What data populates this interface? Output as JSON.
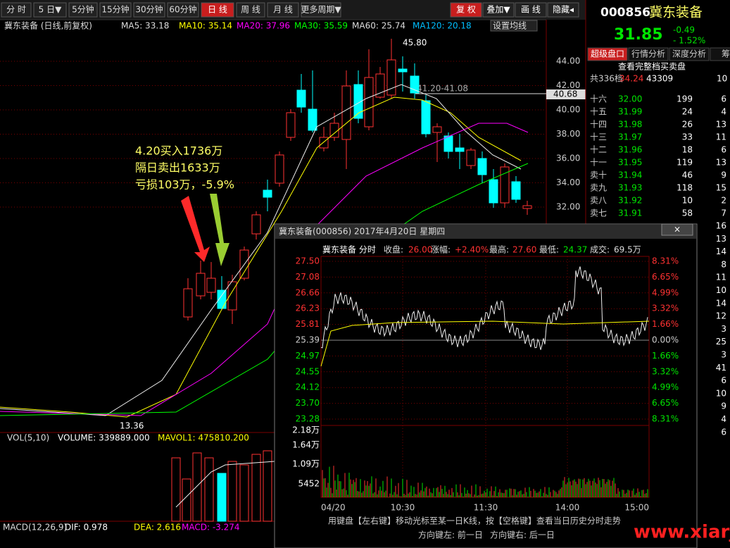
{
  "toolbar": {
    "left": [
      "分 时",
      "5 日▼",
      "5分钟",
      "15分钟",
      "30分钟",
      "60分钟",
      "日 线",
      "周 线",
      "月 线",
      "更多周期▼"
    ],
    "right": [
      "复 权",
      "叠加▼",
      "画 线",
      "隐藏◂"
    ]
  },
  "quote": {
    "code": "000856",
    "name": "冀东装备",
    "price": "31.85",
    "change": "-0.49",
    "pct": "- 1.52%"
  },
  "tabs": [
    "超级盘口",
    "行情分析",
    "深度分析",
    "筹码"
  ],
  "depth": {
    "link": "查看完整档买卖盘",
    "total": "共336档",
    "price": "34.24",
    "volume": "43309",
    "count": "10",
    "rows": [
      [
        "十六",
        "32.00",
        "199",
        "6"
      ],
      [
        "十五",
        "31.99",
        "24",
        "4"
      ],
      [
        "十四",
        "31.98",
        "26",
        "13"
      ],
      [
        "十三",
        "31.97",
        "33",
        "11"
      ],
      [
        "十二",
        "31.96",
        "18",
        "6"
      ],
      [
        "十一",
        "31.95",
        "119",
        "13"
      ],
      [
        "卖十",
        "31.94",
        "46",
        "9"
      ],
      [
        "卖九",
        "31.93",
        "118",
        "15"
      ],
      [
        "卖八",
        "31.92",
        "10",
        "2"
      ],
      [
        "卖七",
        "31.91",
        "58",
        "7"
      ]
    ],
    "more_counts": [
      "16",
      "13",
      "14",
      "8",
      "11",
      "10",
      "14",
      "12",
      "3",
      "25",
      "3",
      "41",
      "6",
      "10",
      "9",
      "4",
      "6"
    ]
  },
  "kline": {
    "title": "冀东装备 (日线,前复权)",
    "ma": [
      "MA5: 33.18",
      "MA10: 35.14",
      "MA20: 37.96",
      "MA30: 35.59",
      "MA60: 25.74",
      "MA120: 20.18"
    ],
    "ma_button": "设置均线",
    "axis": [
      "44.00",
      "42.00",
      "40.00",
      "38.00",
      "36.00",
      "34.00",
      "32.00"
    ],
    "marker": "40.68",
    "high": "45.80",
    "range": "41.20-41.08",
    "low": "13.36",
    "note": [
      "4.20买入1736万",
      "隔日卖出1633万",
      "亏损103万，-5.9%"
    ]
  },
  "volume": {
    "labels": [
      "VOL(5,10)",
      "VOLUME: 339889.000",
      "MAVOL1: 475810.200",
      "MAVO"
    ]
  },
  "macd": {
    "labels": [
      "MACD(12,26,9)",
      "DIF: 0.978",
      "DEA: 2.616",
      "MACD: -3.274"
    ]
  },
  "popup": {
    "title": "冀东装备(000856) 2017年4月20日 星期四",
    "close": "×",
    "header": [
      "冀东装备 分时",
      "收盘:",
      "26.00",
      "涨幅:",
      "+2.40%",
      "最高:",
      "27.60",
      "最低:",
      "24.37",
      "成交:",
      "69.5万"
    ],
    "left_axis": [
      "27.50",
      "27.08",
      "26.66",
      "26.23",
      "25.81",
      "25.39",
      "24.97",
      "24.55",
      "24.12",
      "23.70",
      "23.28"
    ],
    "right_axis": [
      "8.31%",
      "6.65%",
      "4.99%",
      "3.32%",
      "1.66%",
      "0.00%",
      "1.66%",
      "3.32%",
      "4.99%",
      "6.65%",
      "8.31%"
    ],
    "vol_axis": [
      "2.18万",
      "1.64万",
      "1.09万",
      "5452"
    ],
    "times": [
      "04/20",
      "10:30",
      "11:30",
      "14:00",
      "15:00"
    ],
    "footer": [
      "用键盘【左右键】移动光标至某一日K线，按【空格键】查看当日历史分时走势",
      "方向键左: 前一日",
      "方向键右: 后一日"
    ]
  },
  "watermark": "www.xiarj.com"
}
